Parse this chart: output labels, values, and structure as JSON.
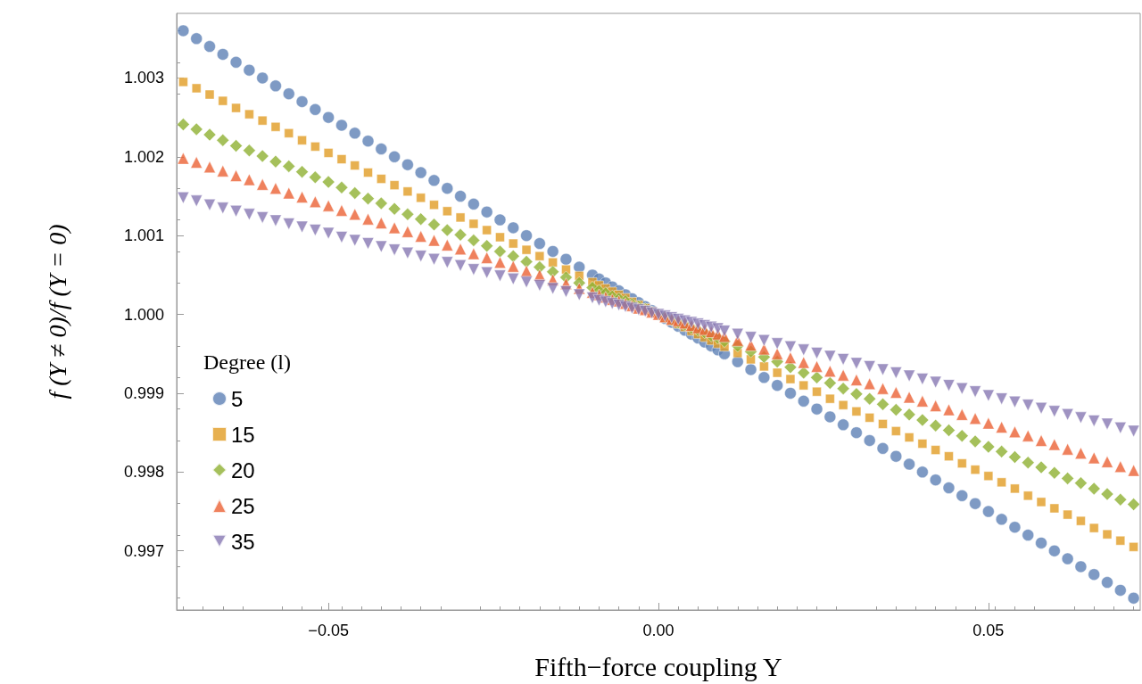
{
  "chart_data": {
    "type": "scatter",
    "xlabel": "Fifth−force coupling Y",
    "ylabel": "f (Y ≠ 0)/f (Y = 0)",
    "legend_title": "Degree (l)",
    "legend": "left",
    "grid": false,
    "x": [
      -0.072,
      -0.07,
      -0.068,
      -0.066,
      -0.064,
      -0.062,
      -0.06,
      -0.058,
      -0.056,
      -0.054,
      -0.052,
      -0.05,
      -0.048,
      -0.046,
      -0.044,
      -0.042,
      -0.04,
      -0.038,
      -0.036,
      -0.034,
      -0.032,
      -0.03,
      -0.028,
      -0.026,
      -0.024,
      -0.022,
      -0.02,
      -0.018,
      -0.016,
      -0.014,
      -0.012,
      -0.01,
      -0.009,
      -0.008,
      -0.007,
      -0.006,
      -0.005,
      -0.004,
      -0.003,
      -0.002,
      -0.001,
      0,
      0.001,
      0.002,
      0.003,
      0.004,
      0.005,
      0.006,
      0.007,
      0.008,
      0.009,
      0.01,
      0.012,
      0.014,
      0.016,
      0.018,
      0.02,
      0.022,
      0.024,
      0.026,
      0.028,
      0.03,
      0.032,
      0.034,
      0.036,
      0.038,
      0.04,
      0.042,
      0.044,
      0.046,
      0.048,
      0.05,
      0.052,
      0.054,
      0.056,
      0.058,
      0.06,
      0.062,
      0.064,
      0.066,
      0.068,
      0.07,
      0.072
    ],
    "xlim": [
      -0.073,
      0.073
    ],
    "xticks": [
      {
        "value": -0.05,
        "label": "−0.05"
      },
      {
        "value": 0,
        "label": "0.00"
      },
      0.05
    ],
    "ylim": [
      0.99625,
      1.00382
    ],
    "yticks": [
      0.997,
      0.998,
      0.999,
      {
        "value": 1,
        "label": "1.000"
      },
      1.001,
      1.002,
      1.003
    ],
    "series": [
      {
        "name": "5",
        "color": "#5e81b5",
        "marker": "circle",
        "values": [
          1.0036,
          1.0035,
          1.0034,
          1.0033,
          1.0032,
          1.0031,
          1.003,
          1.0029,
          1.0028,
          1.0027,
          1.0026,
          1.0025,
          1.0024,
          1.0023,
          1.0022,
          1.0021,
          1.002,
          1.0019,
          1.0018,
          1.0017,
          1.0016,
          1.0015,
          1.0014,
          1.0013,
          1.0012,
          1.0011,
          1.001,
          1.0009,
          1.0008,
          1.0007,
          1.0006,
          1.0005,
          1.00045,
          1.0004,
          1.00035,
          1.0003,
          1.00025,
          1.0002,
          1.00015,
          1.0001,
          1.00005,
          null,
          0.99995,
          0.9999,
          0.99985,
          0.9998,
          0.99975,
          0.9997,
          0.99965,
          0.9996,
          0.99955,
          0.9995,
          0.9994,
          0.9993,
          0.9992,
          0.9991,
          0.999,
          0.9989,
          0.9988,
          0.9987,
          0.9986,
          0.9985,
          0.9984,
          0.9983,
          0.9982,
          0.9981,
          0.998,
          0.9979,
          0.9978,
          0.9977,
          0.9976,
          0.9975,
          0.9974,
          0.9973,
          0.9972,
          0.9971,
          0.997,
          0.9969,
          0.9968,
          0.9967,
          0.9966,
          0.9965,
          0.9964
        ]
      },
      {
        "name": "15",
        "color": "#e19c24",
        "marker": "square",
        "values": [
          1.00295,
          1.00287,
          1.00279,
          1.00271,
          1.00262,
          1.00254,
          1.00246,
          1.00238,
          1.0023,
          1.00221,
          1.00213,
          1.00205,
          1.00197,
          1.00189,
          1.0018,
          1.00172,
          1.00164,
          1.00156,
          1.00148,
          1.00139,
          1.00131,
          1.00123,
          1.00115,
          1.00107,
          1.00098,
          1.0009,
          1.00082,
          1.00074,
          1.00066,
          1.00057,
          1.00049,
          1.00041,
          1.00037,
          1.00033,
          1.00029,
          1.00025,
          1.00021,
          1.00016,
          1.00012,
          1.00008,
          1.00004,
          null,
          0.99996,
          0.99992,
          0.99988,
          0.99984,
          0.99979,
          0.99975,
          0.99971,
          0.99967,
          0.99963,
          0.99959,
          0.99951,
          0.99943,
          0.99934,
          0.99926,
          0.99918,
          0.9991,
          0.99902,
          0.99893,
          0.99885,
          0.99877,
          0.99869,
          0.99861,
          0.99852,
          0.99844,
          0.99836,
          0.99828,
          0.9982,
          0.99811,
          0.99803,
          0.99795,
          0.99787,
          0.99779,
          0.9977,
          0.99762,
          0.99754,
          0.99746,
          0.99738,
          0.99729,
          0.99721,
          0.99713,
          0.99705
        ]
      },
      {
        "name": "20",
        "color": "#8fb032",
        "marker": "diamond",
        "values": [
          1.00241,
          1.00235,
          1.00228,
          1.00221,
          1.00214,
          1.00208,
          1.00201,
          1.00194,
          1.00188,
          1.00181,
          1.00174,
          1.00168,
          1.00161,
          1.00154,
          1.00147,
          1.00141,
          1.00134,
          1.00127,
          1.00121,
          1.00114,
          1.00107,
          1.00101,
          1.00094,
          1.00087,
          1.0008,
          1.00074,
          1.00067,
          1.0006,
          1.00054,
          1.00047,
          1.0004,
          1.00034,
          1.0003,
          1.00027,
          1.00023,
          1.0002,
          1.00017,
          1.00013,
          1.0001,
          1.00007,
          1.00003,
          1,
          0.99997,
          0.99993,
          0.9999,
          0.99987,
          0.99983,
          0.9998,
          0.99977,
          0.99973,
          0.9997,
          0.99966,
          0.9996,
          0.99953,
          0.99946,
          0.9994,
          0.99933,
          0.99926,
          0.9992,
          0.99913,
          0.99906,
          0.99899,
          0.99893,
          0.99886,
          0.99879,
          0.99873,
          0.99866,
          0.99859,
          0.99853,
          0.99846,
          0.99839,
          0.99832,
          0.99826,
          0.99819,
          0.99812,
          0.99806,
          0.99799,
          0.99792,
          0.99786,
          0.99779,
          0.99772,
          0.99765,
          0.99759
        ]
      },
      {
        "name": "25",
        "color": "#eb6235",
        "marker": "triangle",
        "values": [
          1.00198,
          1.00193,
          1.00187,
          1.00182,
          1.00176,
          1.00171,
          1.00165,
          1.0016,
          1.00154,
          1.00149,
          1.00143,
          1.00138,
          1.00132,
          1.00127,
          1.00121,
          1.00116,
          1.0011,
          1.00105,
          1.00099,
          1.00094,
          1.00088,
          1.00083,
          1.00077,
          1.00072,
          1.00066,
          1.00061,
          1.00055,
          1.0005,
          1.00044,
          1.00039,
          1.00033,
          1.00028,
          1.00025,
          1.00022,
          1.00019,
          1.00017,
          1.00014,
          1.00011,
          1.00008,
          1.00006,
          1.00003,
          1,
          0.99997,
          0.99994,
          0.99992,
          0.99989,
          0.99986,
          0.99983,
          0.99981,
          0.99978,
          0.99975,
          0.99972,
          0.99967,
          0.99961,
          0.99956,
          0.9995,
          0.99945,
          0.99939,
          0.99934,
          0.99928,
          0.99923,
          0.99917,
          0.99912,
          0.99906,
          0.99901,
          0.99895,
          0.9989,
          0.99884,
          0.99879,
          0.99873,
          0.99868,
          0.99862,
          0.99857,
          0.99851,
          0.99846,
          0.9984,
          0.99835,
          0.99829,
          0.99824,
          0.99818,
          0.99813,
          0.99807,
          0.99802
        ]
      },
      {
        "name": "35",
        "color": "#8778b3",
        "marker": "triangle-down",
        "values": [
          1.00148,
          1.00144,
          1.00139,
          1.00135,
          1.00131,
          1.00127,
          1.00123,
          1.00119,
          1.00115,
          1.00111,
          1.00107,
          1.00103,
          1.00098,
          1.00094,
          1.0009,
          1.00086,
          1.00082,
          1.00078,
          1.00074,
          1.0007,
          1.00066,
          1.00062,
          1.00057,
          1.00053,
          1.00049,
          1.00045,
          1.00041,
          1.00037,
          1.00033,
          1.00029,
          1.00025,
          1.00021,
          1.00018,
          1.00016,
          1.00014,
          1.00012,
          1.0001,
          1.00008,
          1.00006,
          1.00004,
          1.00002,
          1,
          0.99998,
          0.99996,
          0.99994,
          0.99992,
          0.9999,
          0.99988,
          0.99986,
          0.99984,
          0.99982,
          0.99979,
          0.99975,
          0.99971,
          0.99967,
          0.99963,
          0.99959,
          0.99955,
          0.99951,
          0.99947,
          0.99943,
          0.99938,
          0.99934,
          0.9993,
          0.99926,
          0.99922,
          0.99918,
          0.99914,
          0.9991,
          0.99906,
          0.99902,
          0.99897,
          0.99893,
          0.99889,
          0.99885,
          0.99881,
          0.99877,
          0.99873,
          0.99869,
          0.99865,
          0.99861,
          0.99856,
          0.99852
        ]
      }
    ]
  }
}
